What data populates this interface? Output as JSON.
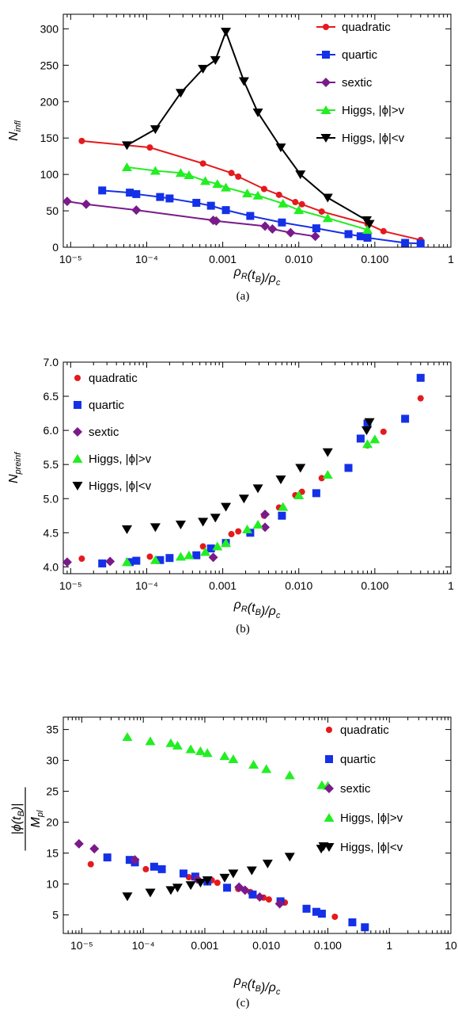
{
  "chart_data": [
    {
      "type": "line",
      "panel_label": "(a)",
      "ylabel": "N_infl",
      "xlabel": "ρR(tB)/ρc",
      "xscale": "log",
      "xlim": [
        8e-06,
        1
      ],
      "ylim": [
        0,
        320
      ],
      "xticks": [
        {
          "v": 1e-05,
          "label": "10⁻⁵"
        },
        {
          "v": 0.0001,
          "label": "10⁻⁴"
        },
        {
          "v": 0.001,
          "label": "0.001"
        },
        {
          "v": 0.01,
          "label": "0.010"
        },
        {
          "v": 0.1,
          "label": "0.100"
        },
        {
          "v": 1,
          "label": "1"
        }
      ],
      "yticks": [
        0,
        50,
        100,
        150,
        200,
        250,
        300
      ],
      "legend_position": "top-right",
      "series": [
        {
          "name": "quadratic",
          "color": "#e41a1c",
          "marker": "circle",
          "line": true,
          "x": [
            1.4e-05,
            0.00011,
            0.00055,
            0.0013,
            0.0016,
            0.0035,
            0.0055,
            0.009,
            0.011,
            0.02,
            0.08,
            0.13,
            0.4
          ],
          "y": [
            146,
            137,
            115,
            102,
            97,
            80,
            72,
            62,
            59,
            49,
            32,
            22,
            10
          ]
        },
        {
          "name": "quartic",
          "color": "#1431e8",
          "marker": "square",
          "line": true,
          "x": [
            2.6e-05,
            6e-05,
            7.3e-05,
            0.00015,
            0.0002,
            0.00045,
            0.0007,
            0.0011,
            0.0023,
            0.006,
            0.017,
            0.045,
            0.065,
            0.08,
            0.25,
            0.4
          ],
          "y": [
            78,
            75,
            73,
            69,
            67,
            61,
            57,
            51,
            43,
            34,
            26,
            18,
            15,
            13,
            6,
            5
          ]
        },
        {
          "name": "sextic",
          "color": "#7a1a8a",
          "marker": "diamond",
          "line": true,
          "x": [
            9e-06,
            1.6e-05,
            7.3e-05,
            0.00075,
            0.00082,
            0.0036,
            0.0045,
            0.0078,
            0.0165
          ],
          "y": [
            63,
            59,
            51,
            37,
            36,
            29,
            25,
            20,
            15
          ]
        },
        {
          "name": "Higgs, |ϕ|>v",
          "color": "#22ee22",
          "marker": "triangle",
          "line": true,
          "x": [
            5.5e-05,
            0.00013,
            0.00028,
            0.00036,
            0.00059,
            0.00085,
            0.0011,
            0.0021,
            0.0029,
            0.0062,
            0.01,
            0.024,
            0.08
          ],
          "y": [
            110,
            105,
            102,
            99,
            91,
            87,
            82,
            74,
            71,
            60,
            51,
            40,
            24
          ]
        },
        {
          "name": "Higgs, |ϕ|<v",
          "color": "#000000",
          "marker": "triangle-down",
          "line": true,
          "x": [
            5.5e-05,
            0.00013,
            0.00028,
            0.00055,
            0.0008,
            0.0011,
            0.0019,
            0.0029,
            0.0058,
            0.0105,
            0.024,
            0.078,
            0.085
          ],
          "y": [
            140,
            162,
            212,
            245,
            257,
            296,
            228,
            185,
            137,
            100,
            68,
            37,
            32
          ]
        }
      ]
    },
    {
      "type": "scatter",
      "panel_label": "(b)",
      "ylabel": "N_preinf",
      "xlabel": "ρR(tB)/ρc",
      "xscale": "log",
      "xlim": [
        8e-06,
        1
      ],
      "ylim": [
        3.9,
        7.0
      ],
      "xticks": [
        {
          "v": 1e-05,
          "label": "10⁻⁵"
        },
        {
          "v": 0.0001,
          "label": "10⁻⁴"
        },
        {
          "v": 0.001,
          "label": "0.001"
        },
        {
          "v": 0.01,
          "label": "0.010"
        },
        {
          "v": 0.1,
          "label": "0.100"
        },
        {
          "v": 1,
          "label": "1"
        }
      ],
      "yticks": [
        {
          "v": 4.0,
          "label": "4.0"
        },
        {
          "v": 4.5,
          "label": "4.5"
        },
        {
          "v": 5.0,
          "label": "5.0"
        },
        {
          "v": 5.5,
          "label": "5.5"
        },
        {
          "v": 6.0,
          "label": "6.0"
        },
        {
          "v": 6.5,
          "label": "6.5"
        },
        {
          "v": 7.0,
          "label": "7.0"
        }
      ],
      "legend_position": "top-left",
      "series": [
        {
          "name": "quadratic",
          "color": "#e41a1c",
          "marker": "circle",
          "x": [
            1.4e-05,
            0.00011,
            0.00055,
            0.0013,
            0.0016,
            0.0035,
            0.0055,
            0.009,
            0.011,
            0.02,
            0.08,
            0.13,
            0.4
          ],
          "y": [
            4.12,
            4.15,
            4.3,
            4.48,
            4.52,
            4.75,
            4.87,
            5.05,
            5.1,
            5.3,
            5.78,
            5.98,
            6.47
          ]
        },
        {
          "name": "quartic",
          "color": "#1431e8",
          "marker": "square",
          "x": [
            2.6e-05,
            6e-05,
            7.3e-05,
            0.00015,
            0.0002,
            0.00045,
            0.0007,
            0.0011,
            0.0023,
            0.006,
            0.017,
            0.045,
            0.065,
            0.08,
            0.25,
            0.4
          ],
          "y": [
            4.05,
            4.07,
            4.09,
            4.1,
            4.13,
            4.17,
            4.27,
            4.35,
            4.5,
            4.75,
            5.08,
            5.45,
            5.88,
            6.1,
            6.17,
            6.77
          ]
        },
        {
          "name": "sextic",
          "color": "#7a1a8a",
          "marker": "diamond",
          "x": [
            9e-06,
            3.3e-05,
            0.00075,
            0.0036,
            0.0036
          ],
          "y": [
            4.07,
            4.08,
            4.14,
            4.58,
            4.77
          ]
        },
        {
          "name": "Higgs, |ϕ|>v",
          "color": "#22ee22",
          "marker": "triangle",
          "x": [
            5.5e-05,
            0.00013,
            0.00028,
            0.00036,
            0.00059,
            0.00085,
            0.0011,
            0.0021,
            0.0029,
            0.0062,
            0.01,
            0.024,
            0.08,
            0.1
          ],
          "y": [
            4.07,
            4.1,
            4.15,
            4.17,
            4.22,
            4.3,
            4.35,
            4.55,
            4.62,
            4.88,
            5.05,
            5.35,
            5.8,
            5.87
          ]
        },
        {
          "name": "Higgs, |ϕ|<v",
          "color": "#000000",
          "marker": "triangle-down",
          "x": [
            5.5e-05,
            0.00013,
            0.00028,
            0.00055,
            0.0008,
            0.0011,
            0.0019,
            0.0029,
            0.0058,
            0.0105,
            0.024,
            0.078,
            0.085
          ],
          "y": [
            4.55,
            4.58,
            4.62,
            4.66,
            4.72,
            4.88,
            5.0,
            5.15,
            5.28,
            5.45,
            5.68,
            6.0,
            6.12
          ]
        }
      ]
    },
    {
      "type": "scatter",
      "panel_label": "(c)",
      "ylabel": "|ϕ(tB)| / Mpl",
      "xlabel": "ρR(tB)/ρc",
      "xscale": "log",
      "xlim": [
        5e-06,
        10
      ],
      "ylim": [
        2,
        37
      ],
      "xticks": [
        {
          "v": 1e-05,
          "label": "10⁻⁵"
        },
        {
          "v": 0.0001,
          "label": "10⁻⁴"
        },
        {
          "v": 0.001,
          "label": "0.001"
        },
        {
          "v": 0.01,
          "label": "0.010"
        },
        {
          "v": 0.1,
          "label": "0.100"
        },
        {
          "v": 1,
          "label": "1"
        },
        {
          "v": 10,
          "label": "10"
        }
      ],
      "yticks": [
        5,
        10,
        15,
        20,
        25,
        30,
        35
      ],
      "legend_position": "top-right",
      "series": [
        {
          "name": "quadratic",
          "color": "#e41a1c",
          "marker": "circle",
          "x": [
            1.4e-05,
            0.00011,
            0.00055,
            0.0013,
            0.0016,
            0.0035,
            0.0055,
            0.009,
            0.011,
            0.02,
            0.13
          ],
          "y": [
            13.2,
            12.4,
            11.1,
            10.6,
            10.2,
            9.2,
            8.7,
            7.8,
            7.5,
            7.0,
            4.7
          ]
        },
        {
          "name": "quartic",
          "color": "#1431e8",
          "marker": "square",
          "x": [
            2.6e-05,
            6e-05,
            7.3e-05,
            0.00015,
            0.0002,
            0.00045,
            0.0007,
            0.0011,
            0.0023,
            0.006,
            0.017,
            0.045,
            0.065,
            0.08,
            0.25,
            0.4
          ],
          "y": [
            14.3,
            13.9,
            13.5,
            12.8,
            12.4,
            11.7,
            11.2,
            10.4,
            9.4,
            8.3,
            7.2,
            6.0,
            5.5,
            5.2,
            3.8,
            3.0
          ]
        },
        {
          "name": "sextic",
          "color": "#7a1a8a",
          "marker": "diamond",
          "x": [
            9e-06,
            1.6e-05,
            7.3e-05,
            0.00075,
            0.0036,
            0.0045,
            0.0078,
            0.0165
          ],
          "y": [
            16.5,
            15.7,
            13.9,
            10.8,
            9.5,
            9.0,
            7.9,
            6.8
          ]
        },
        {
          "name": "Higgs, |ϕ|>v",
          "color": "#22ee22",
          "marker": "triangle",
          "x": [
            5.5e-05,
            0.00013,
            0.00028,
            0.00036,
            0.00059,
            0.00085,
            0.0011,
            0.0021,
            0.0029,
            0.0062,
            0.01,
            0.024,
            0.08,
            0.1
          ],
          "y": [
            33.8,
            33.1,
            32.8,
            32.4,
            31.8,
            31.5,
            31.2,
            30.7,
            30.2,
            29.3,
            28.6,
            27.6,
            26.0,
            25.9
          ]
        },
        {
          "name": "Higgs, |ϕ|<v",
          "color": "#000000",
          "marker": "triangle-down",
          "x": [
            5.5e-05,
            0.00013,
            0.00028,
            0.00036,
            0.00059,
            0.00085,
            0.0011,
            0.0021,
            0.0029,
            0.0058,
            0.0105,
            0.024,
            0.078,
            0.085
          ],
          "y": [
            8.0,
            8.6,
            9.0,
            9.4,
            9.8,
            10.2,
            10.6,
            11.0,
            11.7,
            12.2,
            13.3,
            14.4,
            15.7,
            16.1
          ]
        }
      ]
    }
  ]
}
